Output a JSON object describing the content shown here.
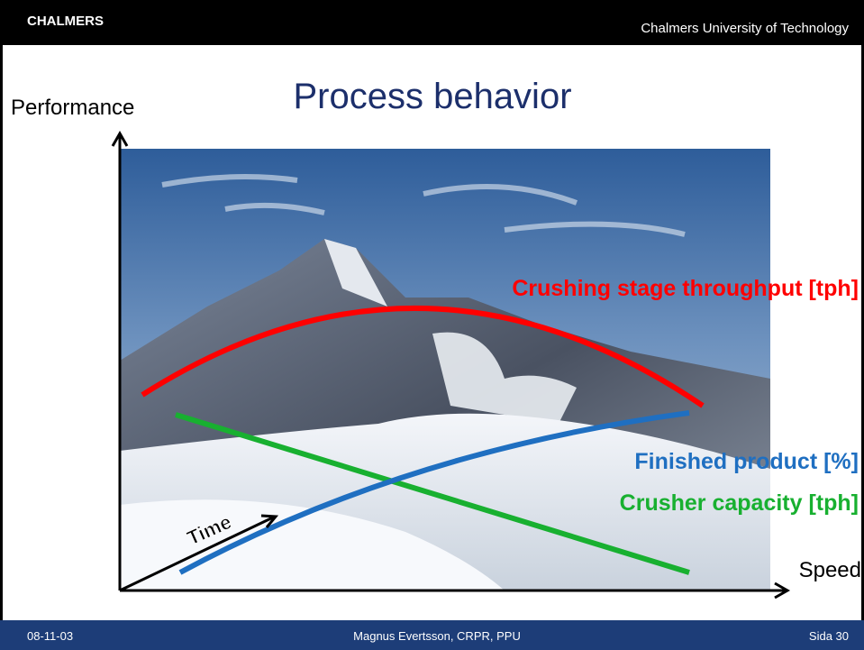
{
  "header": {
    "logo": "CHALMERS",
    "institution": "Chalmers University of Technology"
  },
  "title": "Process behavior",
  "axes": {
    "y_label": "Performance",
    "x_label": "Speed",
    "time_label": "Time"
  },
  "curves": [
    {
      "label": "Crushing stage throughput [tph]",
      "color": "#ff0000"
    },
    {
      "label": "Finished product [%]",
      "color": "#1f6fc1"
    },
    {
      "label": "Crusher capacity [tph]",
      "color": "#18b030"
    }
  ],
  "footer": {
    "date": "08-11-03",
    "author": "Magnus Evertsson, CRPR, PPU",
    "page": "Sida 30"
  }
}
